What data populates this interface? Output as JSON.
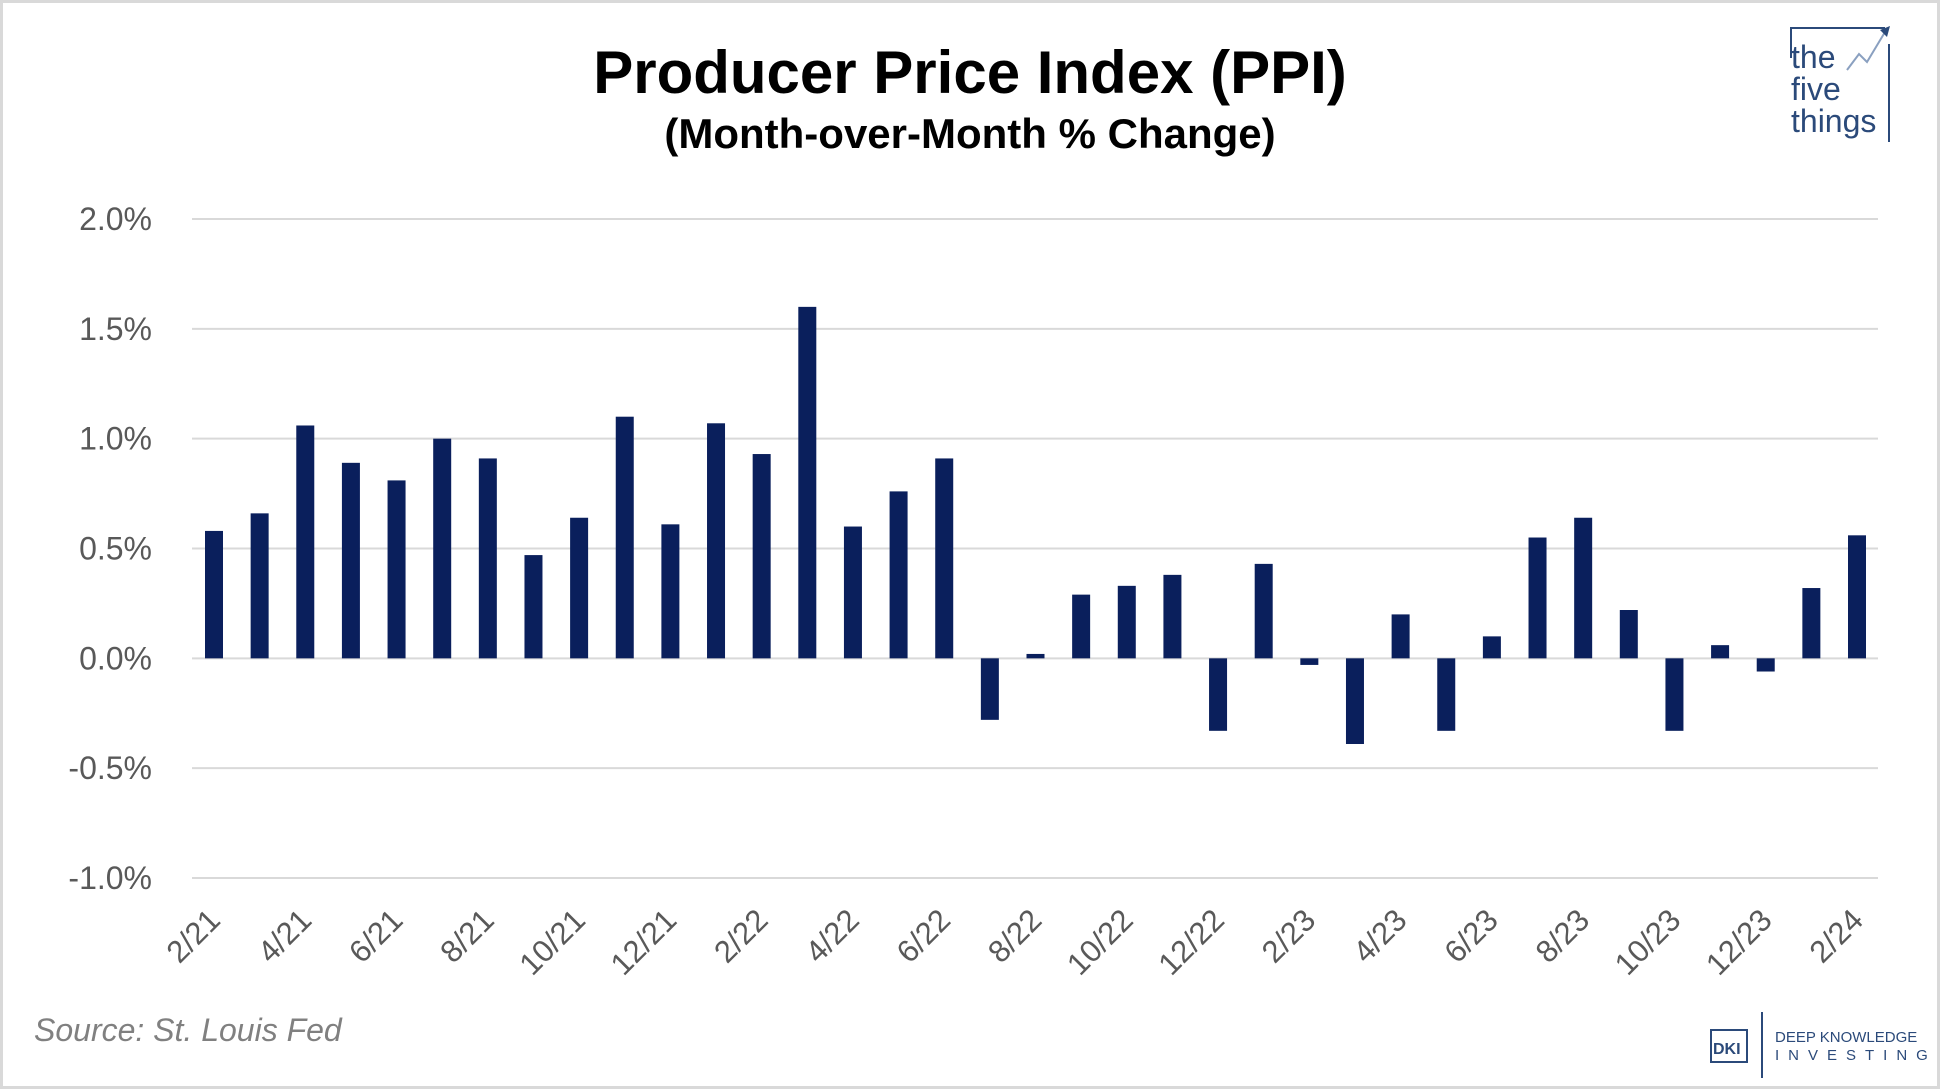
{
  "chart_data": {
    "type": "bar",
    "title": "Producer Price Index (PPI)",
    "subtitle": "(Month-over-Month % Change)",
    "xlabel": "",
    "ylabel": "",
    "ylim": [
      -1.0,
      2.0
    ],
    "yticks": [
      "-1.0%",
      "-0.5%",
      "0.0%",
      "0.5%",
      "1.0%",
      "1.5%",
      "2.0%"
    ],
    "ytick_values": [
      -1.0,
      -0.5,
      0.0,
      0.5,
      1.0,
      1.5,
      2.0
    ],
    "grid": true,
    "categories": [
      "2/21",
      "3/21",
      "4/21",
      "5/21",
      "6/21",
      "7/21",
      "8/21",
      "9/21",
      "10/21",
      "11/21",
      "12/21",
      "1/22",
      "2/22",
      "3/22",
      "4/22",
      "5/22",
      "6/22",
      "7/22",
      "8/22",
      "9/22",
      "10/22",
      "11/22",
      "12/22",
      "1/23",
      "2/23",
      "3/23",
      "4/23",
      "5/23",
      "6/23",
      "7/23",
      "8/23",
      "9/23",
      "10/23",
      "11/23",
      "12/23",
      "1/24",
      "2/24"
    ],
    "xtick_labels": [
      "2/21",
      "4/21",
      "6/21",
      "8/21",
      "10/21",
      "12/21",
      "2/22",
      "4/22",
      "6/22",
      "8/22",
      "10/22",
      "12/22",
      "2/23",
      "4/23",
      "6/23",
      "8/23",
      "10/23",
      "12/23",
      "2/24"
    ],
    "values": [
      0.58,
      0.66,
      1.06,
      0.89,
      0.81,
      1.0,
      0.91,
      0.47,
      0.64,
      1.1,
      0.61,
      1.07,
      0.93,
      1.6,
      0.6,
      0.76,
      0.91,
      -0.28,
      0.02,
      0.29,
      0.33,
      0.38,
      -0.33,
      0.43,
      -0.03,
      -0.39,
      0.2,
      -0.33,
      0.1,
      0.55,
      0.64,
      0.22,
      -0.33,
      0.06,
      -0.06,
      0.32,
      0.56
    ],
    "bar_color": "#0a1f5c",
    "source": "Source: St. Louis Fed"
  },
  "logos": {
    "top_right": "the five things",
    "bottom_right_mark": "DKI",
    "bottom_right_line1": "DEEP KNOWLEDGE",
    "bottom_right_line2": "INVESTING"
  }
}
